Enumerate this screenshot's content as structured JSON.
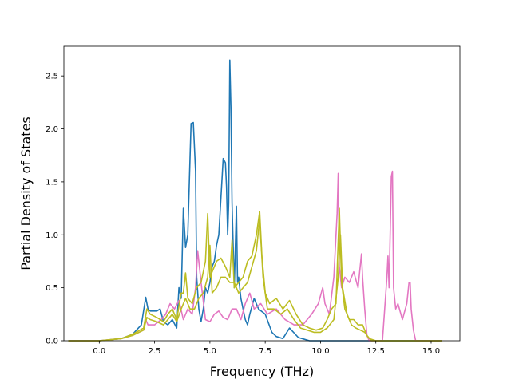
{
  "chart_data": {
    "type": "line",
    "xlabel": "Frequency (THz)",
    "ylabel": "Partial Density of States",
    "xlim": [
      -1.6,
      16.3
    ],
    "ylim": [
      0,
      2.78
    ],
    "xticks": [
      0.0,
      2.5,
      5.0,
      7.5,
      10.0,
      12.5,
      15.0
    ],
    "xtick_labels": [
      "0.0",
      "2.5",
      "5.0",
      "7.5",
      "10.0",
      "12.5",
      "15.0"
    ],
    "yticks": [
      0.0,
      0.5,
      1.0,
      1.5,
      2.0,
      2.5
    ],
    "ytick_labels": [
      "0.0",
      "0.5",
      "1.0",
      "1.5",
      "2.0",
      "2.5"
    ],
    "grid": false,
    "legend": "none",
    "series": [
      {
        "color": "#1f77b4",
        "x": [
          -1.4,
          0.0,
          0.5,
          1.0,
          1.5,
          1.9,
          2.1,
          2.2,
          2.3,
          2.6,
          2.75,
          2.9,
          3.1,
          3.3,
          3.5,
          3.6,
          3.7,
          3.8,
          3.9,
          4.0,
          4.1,
          4.15,
          4.25,
          4.35,
          4.4,
          4.5,
          4.6,
          4.7,
          4.8,
          4.9,
          5.0,
          5.1,
          5.2,
          5.3,
          5.4,
          5.5,
          5.6,
          5.7,
          5.75,
          5.8,
          5.85,
          5.9,
          5.95,
          6.0,
          6.05,
          6.1,
          6.2,
          6.25,
          6.3,
          6.4,
          6.5,
          6.6,
          6.7,
          6.8,
          7.0,
          7.2,
          7.5,
          7.8,
          8.0,
          8.3,
          8.6,
          9.0,
          9.5,
          10.0,
          10.5,
          11.0,
          12.0,
          13.0,
          14.0,
          15.5
        ],
        "y": [
          0.0,
          0.0,
          0.01,
          0.02,
          0.06,
          0.15,
          0.41,
          0.3,
          0.28,
          0.28,
          0.3,
          0.18,
          0.15,
          0.2,
          0.12,
          0.5,
          0.4,
          1.25,
          0.88,
          1.0,
          1.7,
          2.05,
          2.06,
          1.6,
          0.6,
          0.3,
          0.18,
          0.3,
          0.5,
          0.45,
          0.55,
          0.7,
          0.75,
          0.9,
          1.0,
          1.35,
          1.72,
          1.68,
          1.45,
          1.0,
          1.3,
          2.65,
          2.2,
          1.3,
          0.9,
          0.5,
          1.27,
          0.55,
          0.6,
          0.4,
          0.3,
          0.2,
          0.15,
          0.25,
          0.4,
          0.3,
          0.25,
          0.08,
          0.04,
          0.02,
          0.12,
          0.03,
          0.0,
          0.0,
          0.0,
          0.0,
          0.0,
          0.0,
          0.0,
          0.0
        ]
      },
      {
        "color": "#e377c2",
        "x": [
          -1.4,
          0.0,
          0.5,
          1.0,
          1.5,
          2.0,
          2.1,
          2.2,
          2.5,
          2.8,
          3.0,
          3.2,
          3.4,
          3.6,
          3.8,
          4.0,
          4.2,
          4.35,
          4.45,
          4.6,
          4.8,
          5.0,
          5.2,
          5.4,
          5.6,
          5.8,
          6.0,
          6.2,
          6.4,
          6.6,
          6.8,
          7.0,
          7.3,
          7.6,
          8.0,
          8.4,
          8.8,
          9.2,
          9.6,
          9.9,
          10.1,
          10.2,
          10.4,
          10.6,
          10.75,
          10.8,
          10.85,
          10.95,
          11.1,
          11.3,
          11.5,
          11.7,
          11.85,
          11.9,
          12.0,
          12.1,
          12.2,
          12.5,
          12.8,
          13.0,
          13.05,
          13.1,
          13.2,
          13.25,
          13.3,
          13.4,
          13.5,
          13.7,
          13.9,
          14.0,
          14.05,
          14.1,
          14.2,
          14.3,
          14.5,
          15.5
        ],
        "y": [
          0.0,
          0.0,
          0.01,
          0.02,
          0.05,
          0.1,
          0.2,
          0.15,
          0.15,
          0.2,
          0.25,
          0.35,
          0.3,
          0.38,
          0.2,
          0.3,
          0.25,
          0.5,
          0.85,
          0.55,
          0.2,
          0.18,
          0.25,
          0.28,
          0.22,
          0.2,
          0.3,
          0.3,
          0.2,
          0.35,
          0.45,
          0.3,
          0.35,
          0.25,
          0.3,
          0.2,
          0.15,
          0.15,
          0.25,
          0.35,
          0.5,
          0.35,
          0.25,
          0.6,
          1.2,
          1.58,
          0.7,
          0.5,
          0.6,
          0.55,
          0.65,
          0.5,
          0.82,
          0.6,
          0.3,
          0.05,
          0.0,
          0.0,
          0.0,
          0.6,
          0.8,
          0.5,
          1.55,
          1.6,
          0.5,
          0.3,
          0.35,
          0.2,
          0.35,
          0.55,
          0.55,
          0.3,
          0.1,
          0.0,
          0.0,
          0.0
        ]
      },
      {
        "color": "#bcbd22",
        "x": [
          -1.4,
          0.0,
          0.5,
          1.0,
          1.5,
          2.0,
          2.15,
          2.3,
          2.6,
          2.9,
          3.1,
          3.3,
          3.5,
          3.7,
          3.8,
          3.9,
          4.0,
          4.2,
          4.4,
          4.6,
          4.8,
          4.9,
          5.0,
          5.1,
          5.3,
          5.5,
          5.7,
          5.9,
          6.0,
          6.1,
          6.3,
          6.5,
          6.7,
          6.9,
          7.1,
          7.25,
          7.35,
          7.5,
          7.7,
          8.0,
          8.3,
          8.6,
          8.9,
          9.2,
          9.5,
          9.8,
          10.1,
          10.3,
          10.5,
          10.7,
          10.85,
          10.95,
          11.1,
          11.3,
          11.5,
          11.7,
          11.9,
          12.0,
          12.1,
          12.3,
          12.6,
          13.0,
          14.0,
          15.5
        ],
        "y": [
          0.0,
          0.0,
          0.01,
          0.02,
          0.06,
          0.12,
          0.3,
          0.25,
          0.22,
          0.18,
          0.25,
          0.3,
          0.2,
          0.45,
          0.45,
          0.64,
          0.4,
          0.35,
          0.5,
          0.55,
          0.75,
          1.2,
          0.6,
          0.65,
          0.75,
          0.78,
          0.7,
          0.6,
          0.95,
          0.5,
          0.55,
          0.6,
          0.75,
          0.8,
          1.0,
          1.22,
          0.8,
          0.45,
          0.35,
          0.4,
          0.3,
          0.38,
          0.25,
          0.15,
          0.12,
          0.1,
          0.12,
          0.2,
          0.3,
          0.35,
          1.25,
          0.55,
          0.3,
          0.2,
          0.2,
          0.15,
          0.15,
          0.1,
          0.05,
          0.0,
          0.0,
          0.0,
          0.0,
          0.0
        ]
      },
      {
        "color": "#bcbd22",
        "x": [
          -1.4,
          0.0,
          0.5,
          1.0,
          1.5,
          2.0,
          2.15,
          2.3,
          2.6,
          2.9,
          3.1,
          3.3,
          3.5,
          3.7,
          3.9,
          4.1,
          4.3,
          4.5,
          4.7,
          4.9,
          5.0,
          5.1,
          5.3,
          5.5,
          5.7,
          5.9,
          6.1,
          6.3,
          6.5,
          6.7,
          6.9,
          7.1,
          7.25,
          7.4,
          7.6,
          7.9,
          8.2,
          8.5,
          8.8,
          9.1,
          9.4,
          9.7,
          10.0,
          10.3,
          10.6,
          10.8,
          10.9,
          11.0,
          11.2,
          11.4,
          11.6,
          11.8,
          12.0,
          12.2,
          12.5,
          13.0,
          14.0,
          15.5
        ],
        "y": [
          0.0,
          0.0,
          0.01,
          0.02,
          0.05,
          0.1,
          0.22,
          0.2,
          0.18,
          0.15,
          0.2,
          0.25,
          0.18,
          0.3,
          0.4,
          0.3,
          0.3,
          0.4,
          0.45,
          0.6,
          0.9,
          0.45,
          0.5,
          0.6,
          0.6,
          0.55,
          0.55,
          0.45,
          0.5,
          0.55,
          0.7,
          0.85,
          1.15,
          0.6,
          0.3,
          0.3,
          0.25,
          0.3,
          0.2,
          0.12,
          0.1,
          0.08,
          0.08,
          0.12,
          0.2,
          0.6,
          1.0,
          0.5,
          0.25,
          0.15,
          0.12,
          0.1,
          0.08,
          0.02,
          0.0,
          0.0,
          0.0,
          0.0
        ]
      }
    ]
  }
}
